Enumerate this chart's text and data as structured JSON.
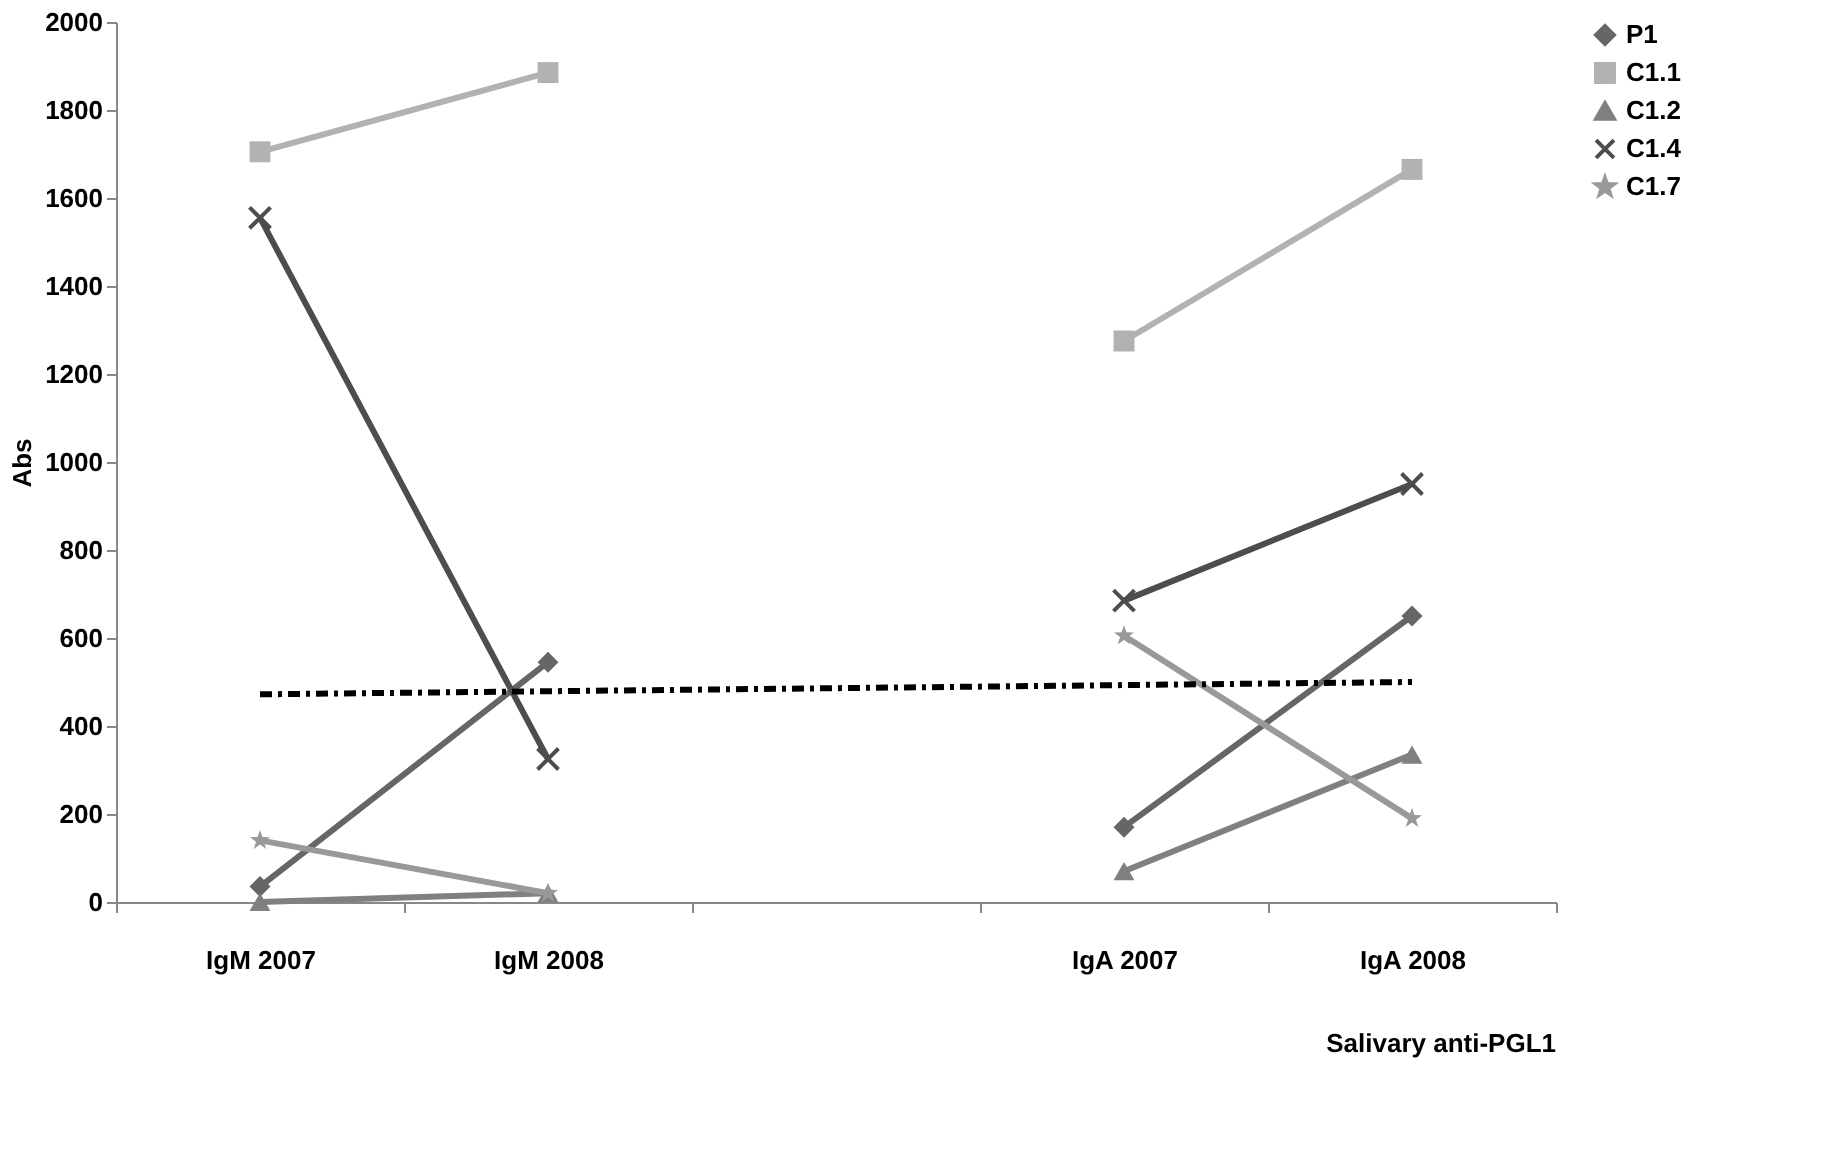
{
  "chart_data": {
    "type": "line",
    "xlabel": "Salivary anti-PGL1",
    "ylabel": "Abs",
    "categories": [
      "IgM 2007",
      "IgM 2008",
      null,
      "IgA 2007",
      "IgA 2008"
    ],
    "ylim": [
      0,
      2000
    ],
    "yticks": [
      0,
      200,
      400,
      600,
      800,
      1000,
      1200,
      1400,
      1600,
      1800,
      2000
    ],
    "grid": false,
    "legend": "right",
    "series": [
      {
        "name": "P1",
        "color": "#666666",
        "marker": "diamond",
        "values": [
          35,
          545,
          null,
          170,
          650
        ]
      },
      {
        "name": "C1.1",
        "color": "#b2b2b2",
        "marker": "square",
        "values": [
          1705,
          1885,
          null,
          1275,
          1665
        ]
      },
      {
        "name": "C1.2",
        "color": "#808080",
        "marker": "triangle",
        "values": [
          0,
          20,
          null,
          70,
          335
        ]
      },
      {
        "name": "C1.4",
        "color": "#4d4d4d",
        "marker": "cross",
        "values": [
          1555,
          325,
          null,
          685,
          950
        ]
      },
      {
        "name": "C1.7",
        "color": "#999999",
        "marker": "star",
        "values": [
          140,
          20,
          null,
          605,
          190
        ]
      },
      {
        "color": "#000000",
        "marker": "none",
        "line_style": "dashed",
        "values": [
          472,
          479,
          486,
          493,
          500
        ]
      }
    ]
  }
}
